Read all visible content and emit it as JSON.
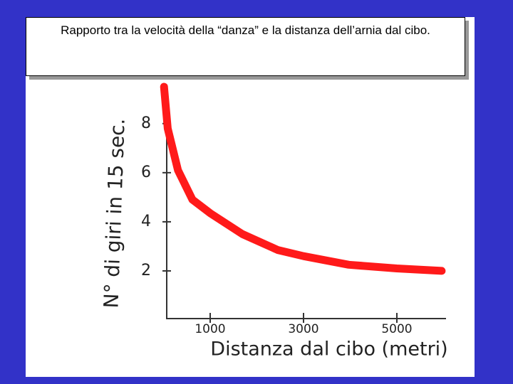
{
  "chart_data": {
    "type": "line",
    "title": "Rapporto tra la velocità della “danza” e la distanza dell’arnia dal cibo.",
    "x_label": "Distanza dal cibo (metri)",
    "y_label": "N° di giri in 15 sec.",
    "x": [
      10,
      90,
      310,
      620,
      1000,
      1690,
      2450,
      3000,
      3970,
      5000,
      5960
    ],
    "series": [
      {
        "color": "#ff1a1a",
        "values": [
          9.5,
          7.8,
          6.1,
          4.9,
          4.35,
          3.5,
          2.85,
          2.6,
          2.25,
          2.1,
          2.0
        ]
      }
    ],
    "xlim": [
      0,
      6000
    ],
    "ylim": [
      0,
      9.5
    ],
    "xticks": [
      1000,
      3000,
      5000
    ],
    "yticks": [
      2,
      4,
      6,
      8
    ]
  }
}
